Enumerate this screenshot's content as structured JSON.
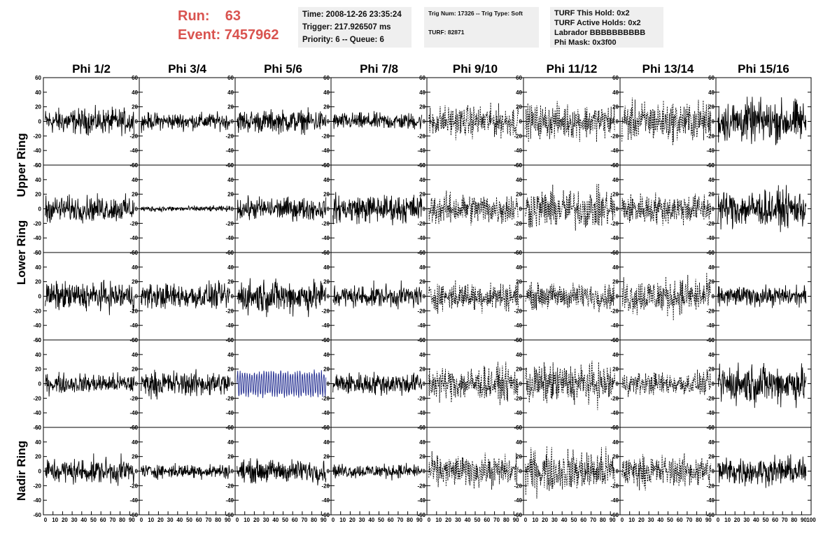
{
  "header": {
    "run_label": "Run:",
    "run_value": "63",
    "event_label": "Event:",
    "event_value": "7457962",
    "time": "Time: 2008-12-26 23:35:24",
    "trigger": "Trigger: 217.926507 ms",
    "priority": "Priority: 6 -- Queue: 6",
    "trig_num": "Trig Num: 17326 -- Trig Type: Soft",
    "turf": "TURF: 82871",
    "turf_hold": "TURF This Hold: 0x2",
    "turf_active": "TURF Active Holds: 0x2",
    "labrador": "Labrador BBBBBBBBBB",
    "phi_mask": "Phi Mask: 0x3f00"
  },
  "chart_data": {
    "type": "line",
    "columns": [
      "Phi 1/2",
      "Phi 3/4",
      "Phi 5/6",
      "Phi 7/8",
      "Phi 9/10",
      "Phi 11/12",
      "Phi 13/14",
      "Phi 15/16"
    ],
    "rows": [
      "Upper Ring",
      "",
      "Lower Ring",
      "",
      "Nadir Ring"
    ],
    "ylim": [
      -60,
      60
    ],
    "yticks": [
      -60,
      -40,
      -20,
      0,
      20,
      40,
      60
    ],
    "ytick_labels": [
      "-60",
      "-40",
      "-20",
      "0",
      "20",
      "40",
      "60"
    ],
    "xlim": [
      0,
      100
    ],
    "xticks": [
      0,
      10,
      20,
      30,
      40,
      50,
      60,
      70,
      80,
      90
    ],
    "xtick_labels": [
      "0",
      "10",
      "20",
      "30",
      "40",
      "50",
      "60",
      "70",
      "80",
      "90"
    ],
    "last_xtick_label": "100",
    "dashed_columns": [
      4,
      5,
      6
    ],
    "highlight_cell": {
      "row": 3,
      "col": 2,
      "color": "#1f2a8f"
    },
    "amplitudes": [
      [
        18,
        12,
        16,
        12,
        22,
        24,
        28,
        30
      ],
      [
        18,
        4,
        16,
        20,
        22,
        28,
        22,
        26
      ],
      [
        20,
        18,
        24,
        16,
        20,
        18,
        26,
        14
      ],
      [
        14,
        18,
        20,
        16,
        24,
        28,
        16,
        28
      ],
      [
        18,
        10,
        16,
        10,
        22,
        30,
        22,
        20
      ]
    ],
    "line_color": "#000000"
  }
}
